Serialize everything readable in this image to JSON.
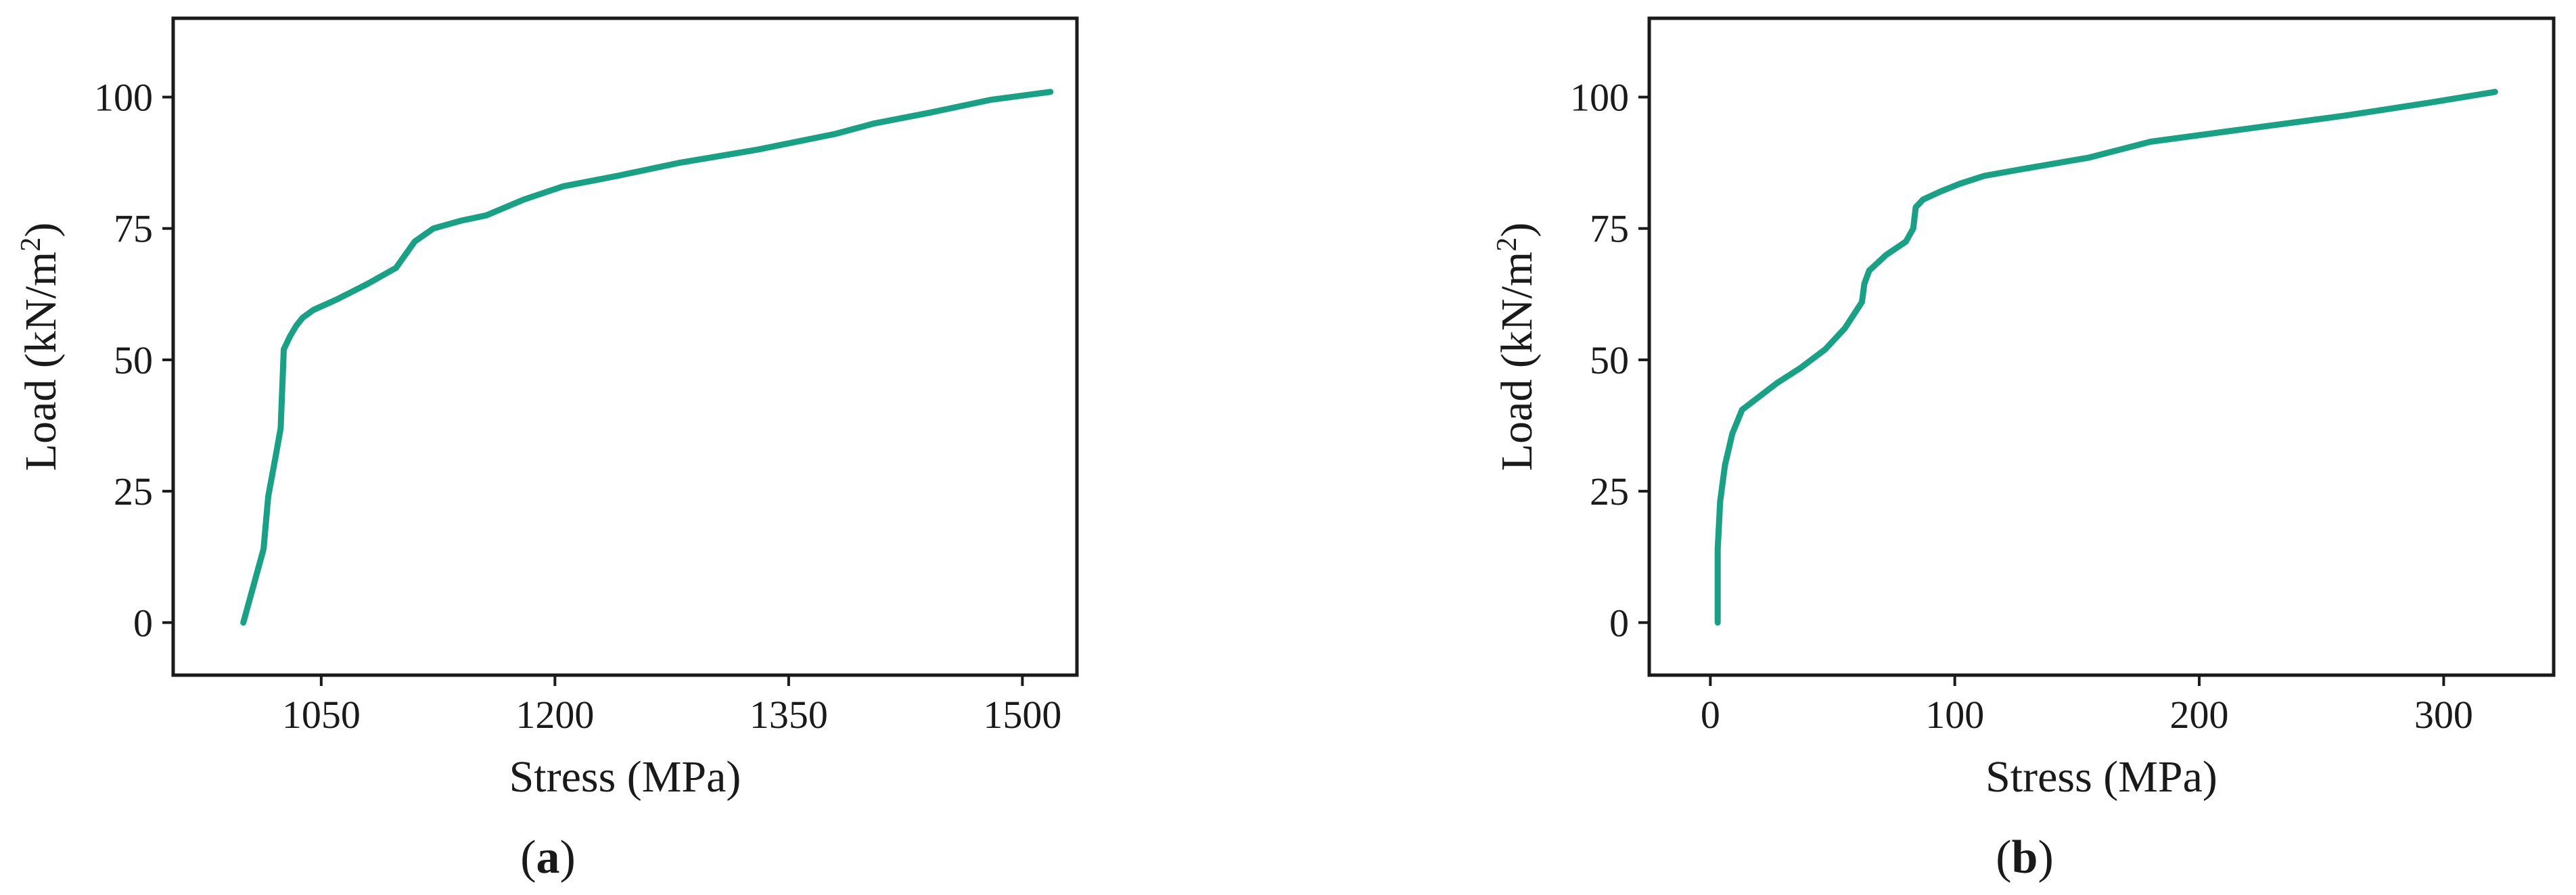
{
  "colors": {
    "series": "#1aa085",
    "axis": "#1a1a1a"
  },
  "chart_data": [
    {
      "type": "line",
      "panel_label": "a",
      "xlabel": "Stress (MPa)",
      "ylabel": "Load (kN/m",
      "ylabel_sup": "2",
      "ylabel_close": ")",
      "xlim": [
        955,
        1535
      ],
      "ylim": [
        -10,
        115
      ],
      "xticks": [
        1050,
        1200,
        1350,
        1500
      ],
      "yticks": [
        0,
        25,
        50,
        75,
        100
      ],
      "grid": false,
      "series": [
        {
          "x": [
            1000,
            1013,
            1016,
            1021,
            1024,
            1026,
            1030,
            1034,
            1038,
            1045,
            1060,
            1080,
            1098,
            1110,
            1122,
            1140,
            1156,
            1180,
            1205,
            1240,
            1280,
            1330,
            1380,
            1405,
            1440,
            1480,
            1518
          ],
          "y": [
            0,
            14,
            24,
            32,
            37,
            52,
            54.5,
            56.5,
            58,
            59.5,
            61.5,
            64.5,
            67.5,
            72.5,
            75,
            76.5,
            77.5,
            80.5,
            83,
            85,
            87.5,
            90,
            93,
            95,
            97,
            99.5,
            101
          ]
        }
      ]
    },
    {
      "type": "line",
      "panel_label": "b",
      "xlabel": "Stress (MPa)",
      "ylabel": "Load (kN/m",
      "ylabel_sup": "2",
      "ylabel_close": ")",
      "xlim": [
        -25,
        345
      ],
      "ylim": [
        -10,
        115
      ],
      "xticks": [
        0,
        100,
        200,
        300
      ],
      "yticks": [
        0,
        25,
        50,
        75,
        100
      ],
      "grid": false,
      "series": [
        {
          "x": [
            3,
            3,
            4,
            6,
            9,
            13,
            20,
            27,
            37,
            47,
            55,
            62,
            63,
            65,
            72,
            80,
            83,
            84,
            87,
            94,
            102,
            112,
            130,
            155,
            180,
            220,
            260,
            295,
            321
          ],
          "y": [
            0,
            14,
            23,
            30,
            36,
            40.5,
            43,
            45.5,
            48.5,
            52,
            56,
            61,
            64.5,
            67,
            70,
            72.5,
            75,
            79,
            80.5,
            82,
            83.5,
            85,
            86.5,
            88.5,
            91.5,
            94,
            96.5,
            99,
            101
          ]
        }
      ]
    }
  ]
}
